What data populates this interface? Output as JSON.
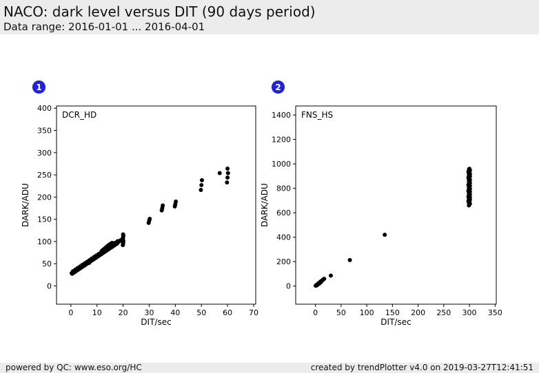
{
  "header": {
    "title": "NACO: dark level versus DIT (90 days period)",
    "subtitle": "Data range: 2016-01-01 ... 2016-04-01"
  },
  "footer": {
    "left": "powered by QC: www.eso.org/HC",
    "right": "created by trendPlotter v4.0 on 2019-03-27T12:41:51"
  },
  "colors": {
    "badge": "#2222dd",
    "band_bg": "#ececec",
    "marker": "#000000",
    "axis": "#000000"
  },
  "chart_data": [
    {
      "type": "scatter",
      "badge": "1",
      "label": "DCR_HD",
      "xlabel": "DIT/sec",
      "ylabel": "DARK/ADU",
      "xlim": [
        -5.5,
        70.8
      ],
      "ylim": [
        -41,
        405
      ],
      "xticks": [
        0,
        10,
        20,
        30,
        40,
        50,
        60,
        70
      ],
      "yticks": [
        0,
        50,
        100,
        150,
        200,
        250,
        300,
        350,
        400
      ],
      "grid": false,
      "legend": null,
      "marker": {
        "shape": "circle",
        "size": 3,
        "color": "#000000"
      },
      "points": [
        [
          0.3,
          28.7
        ],
        [
          0.6,
          29.9
        ],
        [
          0.9,
          31.1
        ],
        [
          1.2,
          32.2
        ],
        [
          1.5,
          33.4
        ],
        [
          1.8,
          34.6
        ],
        [
          2.1,
          35.8
        ],
        [
          2.4,
          37
        ],
        [
          2.7,
          38.2
        ],
        [
          3,
          39.4
        ],
        [
          3.3,
          40.5
        ],
        [
          3.6,
          41.7
        ],
        [
          3.9,
          42.9
        ],
        [
          4.2,
          44.1
        ],
        [
          4.5,
          45.3
        ],
        [
          4.8,
          46.5
        ],
        [
          5.1,
          47.6
        ],
        [
          5.4,
          48.8
        ],
        [
          5.7,
          50
        ],
        [
          6,
          51.2
        ],
        [
          6.3,
          52.4
        ],
        [
          6.6,
          53.6
        ],
        [
          6.9,
          54.8
        ],
        [
          7.2,
          55.9
        ],
        [
          7.5,
          57.1
        ],
        [
          7.8,
          58.3
        ],
        [
          8.1,
          59.5
        ],
        [
          8.4,
          60.7
        ],
        [
          8.7,
          61.9
        ],
        [
          9,
          63.1
        ],
        [
          9.3,
          64.2
        ],
        [
          9.6,
          65.4
        ],
        [
          9.9,
          66.6
        ],
        [
          10.2,
          67.8
        ],
        [
          10.5,
          69
        ],
        [
          10.8,
          70.2
        ],
        [
          11.1,
          71.3
        ],
        [
          11.4,
          72.5
        ],
        [
          11.7,
          73.7
        ],
        [
          12,
          74.9
        ],
        [
          12.3,
          76.1
        ],
        [
          12.6,
          77.3
        ],
        [
          12.9,
          78.5
        ],
        [
          13.2,
          79.6
        ],
        [
          13.5,
          80.8
        ],
        [
          13.8,
          82
        ],
        [
          14.1,
          83.2
        ],
        [
          14.4,
          84.4
        ],
        [
          14.7,
          85.6
        ],
        [
          15,
          86.8
        ],
        [
          15.3,
          87.9
        ],
        [
          15.6,
          89.1
        ],
        [
          15.9,
          90.3
        ],
        [
          16.2,
          91.5
        ],
        [
          16.5,
          92.7
        ],
        [
          16.8,
          93.9
        ],
        [
          17.1,
          95
        ],
        [
          17.4,
          96.2
        ],
        [
          17.7,
          97.4
        ],
        [
          18,
          98.6
        ],
        [
          18.3,
          99.8
        ],
        [
          18.6,
          101
        ],
        [
          18.9,
          102.1
        ],
        [
          19.2,
          103.3
        ],
        [
          0.5,
          27.5
        ],
        [
          1,
          29.5
        ],
        [
          1.6,
          31.8
        ],
        [
          2.2,
          34.2
        ],
        [
          2.8,
          36.6
        ],
        [
          3.4,
          38.9
        ],
        [
          4,
          41.3
        ],
        [
          4.6,
          43.7
        ],
        [
          5.2,
          46
        ],
        [
          5.8,
          48.4
        ],
        [
          6.4,
          50.8
        ],
        [
          7,
          52.2
        ],
        [
          7.6,
          55.5
        ],
        [
          8.2,
          57.9
        ],
        [
          8.8,
          60.3
        ],
        [
          9.4,
          62.6
        ],
        [
          10,
          65
        ],
        [
          10.6,
          67.4
        ],
        [
          11.2,
          69.7
        ],
        [
          11.8,
          72.1
        ],
        [
          12.4,
          74.5
        ],
        [
          13,
          76.9
        ],
        [
          13.6,
          79.2
        ],
        [
          14.2,
          81.6
        ],
        [
          14.8,
          84
        ],
        [
          15.4,
          86.3
        ],
        [
          16,
          88.7
        ],
        [
          16.6,
          91.1
        ],
        [
          17.2,
          93.4
        ],
        [
          17.8,
          95.8
        ],
        [
          0.8,
          33.2
        ],
        [
          1.7,
          36.7
        ],
        [
          2.6,
          40.3
        ],
        [
          3.5,
          43.8
        ],
        [
          4.4,
          47.4
        ],
        [
          5.3,
          50.9
        ],
        [
          6.2,
          54.5
        ],
        [
          7.1,
          58
        ],
        [
          8,
          61.6
        ],
        [
          8.9,
          65.2
        ],
        [
          9.8,
          68.7
        ],
        [
          10.7,
          72.3
        ],
        [
          11.6,
          75.8
        ],
        [
          12.5,
          79.4
        ],
        [
          13.4,
          82.9
        ],
        [
          14.3,
          86.5
        ],
        [
          15.2,
          90
        ],
        [
          16.1,
          93.6
        ],
        [
          17,
          97.2
        ],
        [
          17.9,
          100.7
        ],
        [
          11.8,
          78.5
        ],
        [
          12.2,
          80.5
        ],
        [
          12.6,
          82.5
        ],
        [
          13,
          84.5
        ],
        [
          13.4,
          86.5
        ],
        [
          13.8,
          88.5
        ],
        [
          14.2,
          90.5
        ],
        [
          14.6,
          92.5
        ],
        [
          15,
          94
        ],
        [
          15.4,
          95.5
        ],
        [
          15.8,
          97
        ],
        [
          19.9,
          92
        ],
        [
          20,
          95
        ],
        [
          20,
          98
        ],
        [
          20.1,
          101
        ],
        [
          20,
          104
        ],
        [
          19.9,
          107
        ],
        [
          20,
          110
        ],
        [
          20.1,
          113
        ],
        [
          20,
          116
        ],
        [
          29.8,
          142
        ],
        [
          30,
          147
        ],
        [
          30.2,
          151
        ],
        [
          34.8,
          170
        ],
        [
          35,
          175
        ],
        [
          35.2,
          181
        ],
        [
          39.8,
          179
        ],
        [
          40,
          184
        ],
        [
          40.2,
          190
        ],
        [
          49.8,
          216
        ],
        [
          50,
          227
        ],
        [
          50.2,
          238
        ],
        [
          57,
          254
        ],
        [
          59.8,
          233
        ],
        [
          60,
          244
        ],
        [
          60.2,
          254
        ],
        [
          60,
          264
        ]
      ]
    },
    {
      "type": "scatter",
      "badge": "2",
      "label": "FNS_HS",
      "xlabel": "DIT/sec",
      "ylabel": "DARK/ADU",
      "xlim": [
        -38.5,
        352.3
      ],
      "ylim": [
        -148,
        1474
      ],
      "xticks": [
        0,
        50,
        100,
        150,
        200,
        250,
        300,
        350
      ],
      "yticks": [
        0,
        200,
        400,
        600,
        800,
        1000,
        1200,
        1400
      ],
      "grid": false,
      "legend": null,
      "marker": {
        "shape": "circle",
        "size": 3,
        "color": "#000000"
      },
      "points": [
        [
          0.5,
          3
        ],
        [
          1,
          5
        ],
        [
          1.5,
          6
        ],
        [
          2,
          8
        ],
        [
          2.5,
          9
        ],
        [
          3,
          11
        ],
        [
          3.5,
          13
        ],
        [
          4,
          15
        ],
        [
          4.5,
          16
        ],
        [
          5,
          18
        ],
        [
          5.5,
          20
        ],
        [
          6,
          22
        ],
        [
          6.5,
          23
        ],
        [
          7,
          25
        ],
        [
          7.5,
          27
        ],
        [
          8,
          29
        ],
        [
          8.5,
          30
        ],
        [
          9,
          32
        ],
        [
          9.5,
          34
        ],
        [
          10,
          36
        ],
        [
          11,
          39
        ],
        [
          12,
          43
        ],
        [
          13,
          46
        ],
        [
          14,
          50
        ],
        [
          15,
          53
        ],
        [
          16,
          57
        ],
        [
          17,
          60
        ],
        [
          3,
          8
        ],
        [
          5,
          14
        ],
        [
          7,
          21
        ],
        [
          9,
          28
        ],
        [
          11,
          35
        ],
        [
          2,
          5
        ],
        [
          4,
          11
        ],
        [
          6,
          17
        ],
        [
          8,
          24
        ],
        [
          10,
          31
        ],
        [
          30,
          86
        ],
        [
          67,
          213
        ],
        [
          135,
          420
        ],
        [
          299,
          660
        ],
        [
          300,
          668
        ],
        [
          301,
          675
        ],
        [
          299,
          682
        ],
        [
          300,
          689
        ],
        [
          298,
          695
        ],
        [
          300,
          701
        ],
        [
          301,
          707
        ],
        [
          299,
          713
        ],
        [
          300,
          719
        ],
        [
          301,
          725
        ],
        [
          298,
          731
        ],
        [
          300,
          737
        ],
        [
          299,
          743
        ],
        [
          301,
          749
        ],
        [
          300,
          755
        ],
        [
          299,
          761
        ],
        [
          300,
          767
        ],
        [
          301,
          773
        ],
        [
          298,
          779
        ],
        [
          300,
          785
        ],
        [
          299,
          791
        ],
        [
          301,
          797
        ],
        [
          300,
          803
        ],
        [
          299,
          809
        ],
        [
          300,
          815
        ],
        [
          301,
          821
        ],
        [
          298,
          827
        ],
        [
          300,
          833
        ],
        [
          299,
          839
        ],
        [
          301,
          845
        ],
        [
          300,
          851
        ],
        [
          299,
          857
        ],
        [
          300,
          863
        ],
        [
          301,
          869
        ],
        [
          299,
          875
        ],
        [
          300,
          881
        ],
        [
          298,
          887
        ],
        [
          300,
          893
        ],
        [
          301,
          899
        ],
        [
          299,
          905
        ],
        [
          300,
          911
        ],
        [
          301,
          917
        ],
        [
          299,
          923
        ],
        [
          300,
          929
        ],
        [
          298,
          935
        ],
        [
          300,
          941
        ],
        [
          301,
          947
        ],
        [
          299,
          953
        ],
        [
          300,
          960
        ]
      ]
    }
  ]
}
